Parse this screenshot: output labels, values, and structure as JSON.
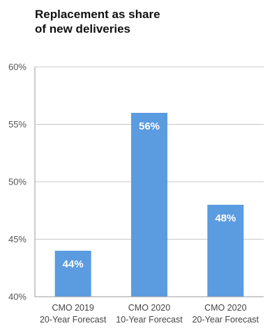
{
  "chart_data": {
    "type": "bar",
    "title_lines": [
      "Replacement as share",
      "of new deliveries"
    ],
    "categories": [
      [
        "CMO 2019",
        "20-Year Forecast"
      ],
      [
        "CMO 2020",
        "10-Year Forecast"
      ],
      [
        "CMO 2020",
        "20-Year Forecast"
      ]
    ],
    "values": [
      44,
      56,
      48
    ],
    "data_labels": [
      "44%",
      "56%",
      "48%"
    ],
    "ylim": [
      40,
      60
    ],
    "yticks": [
      40,
      45,
      50,
      55,
      60
    ],
    "ytick_labels": [
      "40%",
      "45%",
      "50%",
      "55%",
      "60%"
    ],
    "grid": true,
    "bar_color": "#5b9be0",
    "grid_color": "#c8c8c8",
    "axis_color": "#9a9a9a"
  }
}
